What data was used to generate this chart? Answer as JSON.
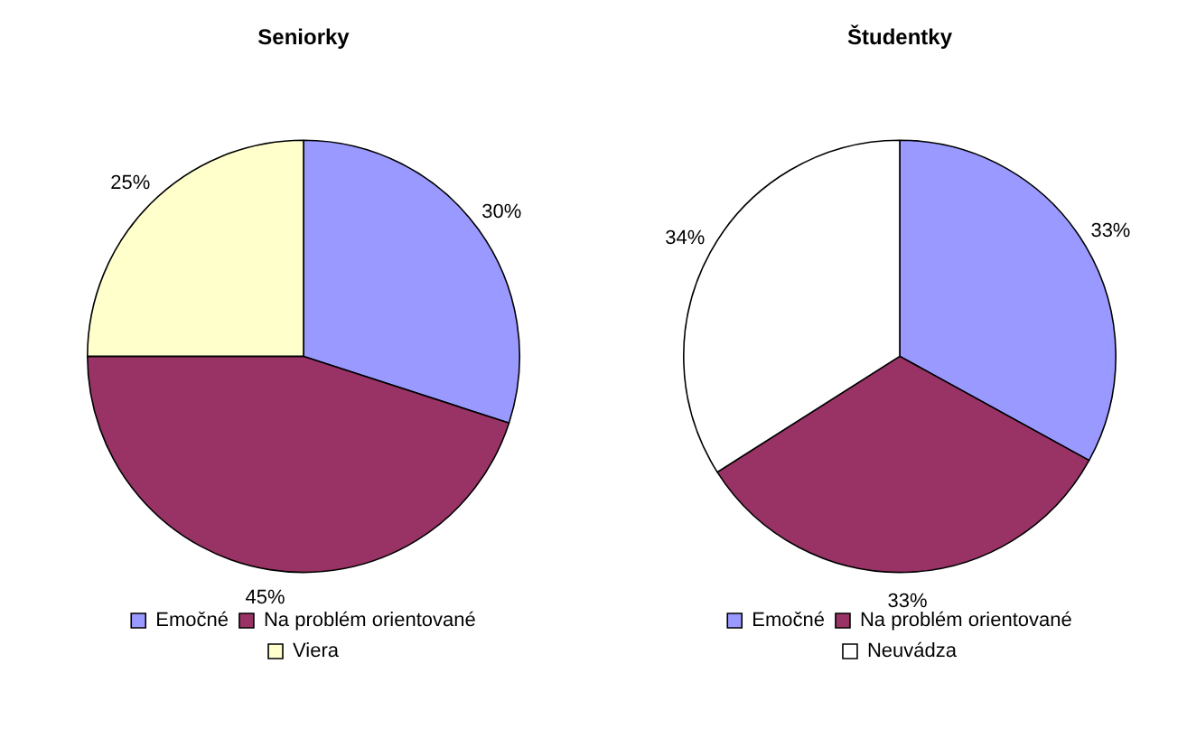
{
  "chart_data": [
    {
      "type": "pie",
      "title": "Seniorky",
      "categories": [
        "Emočné",
        "Na problém orientované",
        "Viera"
      ],
      "values": [
        30,
        45,
        25
      ],
      "colors": [
        "#9999ff",
        "#993366",
        "#ffffcc"
      ],
      "value_labels": [
        "30%",
        "45%",
        "25%"
      ],
      "legend": "bottom"
    },
    {
      "type": "pie",
      "title": "Študentky",
      "categories": [
        "Emočné",
        "Na problém orientované",
        "Neuvádza"
      ],
      "values": [
        33,
        33,
        34
      ],
      "colors": [
        "#9999ff",
        "#993366",
        "#ffffff"
      ],
      "value_labels": [
        "33%",
        "33%",
        "34%"
      ],
      "legend": "bottom"
    }
  ]
}
